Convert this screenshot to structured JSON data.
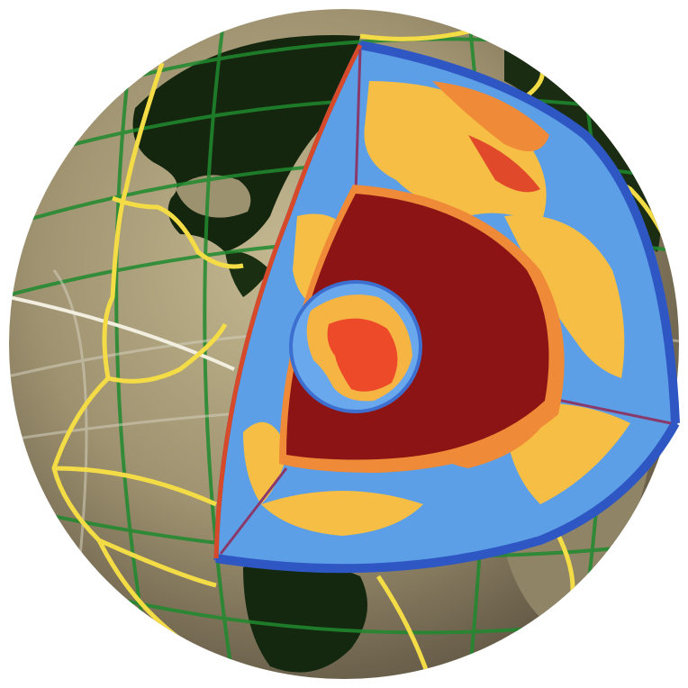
{
  "scene": {
    "subject": "earth-cutaway-globe",
    "colors": {
      "background": "#ffffff",
      "globe_land_light": "#a79a76",
      "globe_land_dark": "#2a2a12",
      "continent_green": "#0e2a10",
      "grid_green": "#1a7a2a",
      "grid_light": "#d8d4c4",
      "plate_boundary": "#f4e04a",
      "mantle_blue": "#5b9ee6",
      "mantle_blue_dark": "#3d6fd0",
      "mantle_yellow": "#f8c046",
      "mantle_orange": "#f08a3a",
      "mantle_red": "#e24a2a",
      "outer_core": "#8c1414",
      "inner_core_red": "#ee4a2a",
      "inner_core_orange": "#f5b043",
      "inner_core_blue": "#7fb3ef"
    }
  }
}
